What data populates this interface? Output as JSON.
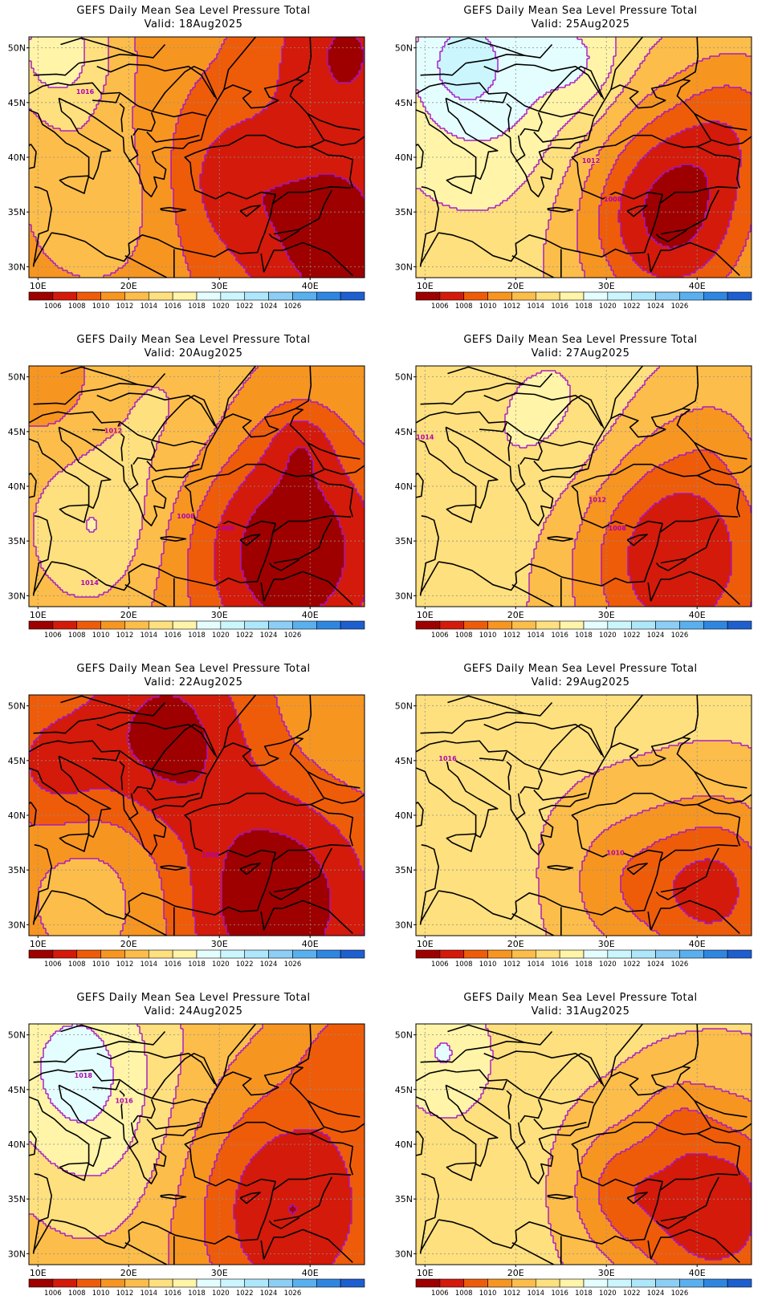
{
  "colors": {
    "bins": [
      "#9e0000",
      "#d41a0a",
      "#ee5c0a",
      "#f79521",
      "#fcbd4a",
      "#ffe07e",
      "#fff4a8",
      "#e4feff",
      "#cbf6fe",
      "#aee7fb",
      "#8ccef5",
      "#5ab0ee",
      "#2f86e0",
      "#1e5fd0"
    ],
    "isobar": "#a416c9",
    "border": "#000000",
    "grid": "#8f8f8f"
  },
  "axes": {
    "lat_ticks": [
      {
        "value": 30,
        "label": "30N"
      },
      {
        "value": 35,
        "label": "35N"
      },
      {
        "value": 40,
        "label": "40N"
      },
      {
        "value": 45,
        "label": "45N"
      },
      {
        "value": 50,
        "label": "50N"
      }
    ],
    "lon_ticks": [
      {
        "value": 10,
        "label": "10E"
      },
      {
        "value": 20,
        "label": "20E"
      },
      {
        "value": 30,
        "label": "30E"
      },
      {
        "value": 40,
        "label": "40E"
      }
    ],
    "lon_range": [
      9,
      46
    ],
    "lat_range": [
      29,
      51
    ]
  },
  "colorbar": {
    "labels": [
      "1006",
      "1008",
      "1010",
      "1012",
      "1014",
      "1016",
      "1018",
      "1020",
      "1022",
      "1024",
      "1026"
    ]
  },
  "panels": [
    {
      "title": "GEFS Daily Mean Sea Level Pressure Total",
      "valid": "Valid:  18Aug2025",
      "base": 1010.5,
      "centers": [
        {
          "lon": 44,
          "lat": 50,
          "amp": -4.5,
          "r": 6
        },
        {
          "lon": 43,
          "lat": 32,
          "amp": -5.5,
          "r": 7
        },
        {
          "lon": 31,
          "lat": 38,
          "amp": -3,
          "r": 5
        },
        {
          "lon": 12,
          "lat": 50,
          "amp": 6.5,
          "r": 5
        },
        {
          "lon": 16,
          "lat": 36,
          "amp": 3,
          "r": 6
        }
      ],
      "contour_labels": [
        {
          "lon": 15.2,
          "lat": 46,
          "text": "1016"
        }
      ]
    },
    {
      "title": "GEFS Daily Mean Sea Level Pressure Total",
      "valid": "Valid:  25Aug2025",
      "base": 1014.5,
      "centers": [
        {
          "lon": 17,
          "lat": 48,
          "amp": 4.5,
          "r": 9
        },
        {
          "lon": 14,
          "lat": 48.5,
          "amp": 2.5,
          "r": 3
        },
        {
          "lon": 27.5,
          "lat": 48.5,
          "amp": 2,
          "r": 3
        },
        {
          "lon": 37,
          "lat": 35,
          "amp": -9.5,
          "r": 7
        },
        {
          "lon": 45,
          "lat": 44,
          "amp": -3.5,
          "r": 5
        }
      ],
      "contour_labels": [
        {
          "lon": 28.3,
          "lat": 39.7,
          "text": "1012"
        },
        {
          "lon": 30.7,
          "lat": 36.2,
          "text": "1008"
        }
      ]
    },
    {
      "title": "GEFS Daily Mean Sea Level Pressure Total",
      "valid": "Valid:  20Aug2025",
      "base": 1012.5,
      "centers": [
        {
          "lon": 38,
          "lat": 34,
          "amp": -8.5,
          "r": 8
        },
        {
          "lon": 16,
          "lat": 36,
          "amp": 3.5,
          "r": 5
        },
        {
          "lon": 24,
          "lat": 46,
          "amp": 2,
          "r": 6
        },
        {
          "lon": 39,
          "lat": 44,
          "amp": -2.5,
          "r": 2.5
        },
        {
          "lon": 12,
          "lat": 49,
          "amp": -1.5,
          "r": 4
        }
      ],
      "contour_labels": [
        {
          "lon": 18.3,
          "lat": 45.1,
          "text": "1012"
        },
        {
          "lon": 26.3,
          "lat": 37.3,
          "text": "1008"
        },
        {
          "lon": 30.7,
          "lat": 36.2,
          "text": "1006"
        },
        {
          "lon": 15.7,
          "lat": 31.2,
          "text": "1014"
        }
      ]
    },
    {
      "title": "GEFS Daily Mean Sea Level Pressure Total",
      "valid": "Valid:  27Aug2025",
      "base": 1014.5,
      "centers": [
        {
          "lon": 38,
          "lat": 33.5,
          "amp": -8.5,
          "r": 8
        },
        {
          "lon": 25,
          "lat": 46.5,
          "amp": 2,
          "r": 6
        },
        {
          "lon": 13,
          "lat": 38,
          "amp": 1,
          "r": 8
        },
        {
          "lon": 42,
          "lat": 45,
          "amp": -1,
          "r": 3
        }
      ],
      "contour_labels": [
        {
          "lon": 10,
          "lat": 44.5,
          "text": "1014"
        },
        {
          "lon": 29,
          "lat": 38.8,
          "text": "1012"
        },
        {
          "lon": 31.2,
          "lat": 36.2,
          "text": "1008"
        }
      ]
    },
    {
      "title": "GEFS Daily Mean Sea Level Pressure Total",
      "valid": "Valid:  22Aug2025",
      "base": 1010,
      "centers": [
        {
          "lon": 24,
          "lat": 47,
          "amp": -5,
          "r": 6
        },
        {
          "lon": 36,
          "lat": 32,
          "amp": -6,
          "r": 7
        },
        {
          "lon": 12,
          "lat": 44,
          "amp": -3,
          "r": 4
        },
        {
          "lon": 16,
          "lat": 33,
          "amp": 3,
          "r": 7
        },
        {
          "lon": 45,
          "lat": 50,
          "amp": 2,
          "r": 6
        }
      ],
      "contour_labels": [
        {
          "lon": 29,
          "lat": 36.4,
          "text": "1008"
        }
      ]
    },
    {
      "title": "GEFS Daily Mean Sea Level Pressure Total",
      "valid": "Valid:  29Aug2025",
      "base": 1014.5,
      "centers": [
        {
          "lon": 42,
          "lat": 33,
          "amp": -7,
          "r": 6
        },
        {
          "lon": 31,
          "lat": 34,
          "amp": -3,
          "r": 5
        },
        {
          "lon": 14,
          "lat": 32,
          "amp": 1,
          "r": 5
        }
      ],
      "contour_labels": [
        {
          "lon": 12.5,
          "lat": 45.2,
          "text": "1016"
        },
        {
          "lon": 31,
          "lat": 36.6,
          "text": "1010"
        }
      ]
    },
    {
      "title": "GEFS Daily Mean Sea Level Pressure Total",
      "valid": "Valid:  24Aug2025",
      "base": 1013,
      "centers": [
        {
          "lon": 14,
          "lat": 47.5,
          "amp": 5.5,
          "r": 7
        },
        {
          "lon": 38,
          "lat": 34,
          "amp": -7,
          "r": 8
        },
        {
          "lon": 45,
          "lat": 49,
          "amp": -3,
          "r": 5
        },
        {
          "lon": 18,
          "lat": 38,
          "amp": 1.5,
          "r": 6
        }
      ],
      "contour_labels": [
        {
          "lon": 15,
          "lat": 46.3,
          "text": "1018"
        },
        {
          "lon": 19.5,
          "lat": 44,
          "text": "1016"
        }
      ]
    },
    {
      "title": "GEFS Daily Mean Sea Level Pressure Total",
      "valid": "Valid:  31Aug2025",
      "base": 1014.5,
      "centers": [
        {
          "lon": 42,
          "lat": 34,
          "amp": -8,
          "r": 7
        },
        {
          "lon": 31,
          "lat": 36,
          "amp": -3.5,
          "r": 4
        },
        {
          "lon": 12,
          "lat": 48.5,
          "amp": 3.5,
          "r": 4
        },
        {
          "lon": 38,
          "lat": 42.5,
          "amp": -1.5,
          "r": 2.5
        },
        {
          "lon": 15,
          "lat": 36,
          "amp": 0.8,
          "r": 6
        }
      ],
      "contour_labels": []
    }
  ]
}
